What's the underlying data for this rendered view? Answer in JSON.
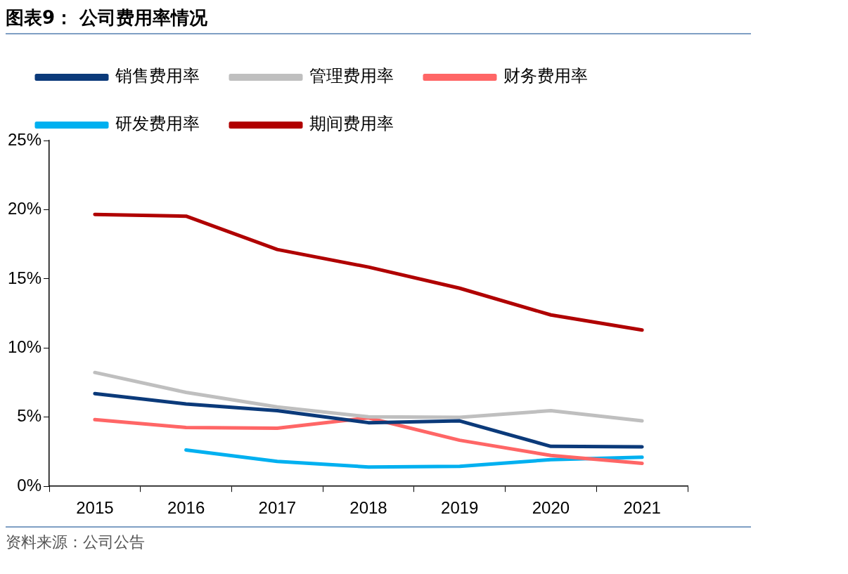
{
  "chart_data": {
    "type": "line",
    "title": "图表9：  公司费用率情况",
    "categories": [
      "2015",
      "2016",
      "2017",
      "2018",
      "2019",
      "2020",
      "2021"
    ],
    "series": [
      {
        "name": "销售费用率",
        "color": "#0b3a7a",
        "values": [
          6.7,
          5.95,
          5.47,
          4.6,
          4.73,
          2.89,
          2.85
        ]
      },
      {
        "name": "管理费用率",
        "color": "#bfbfbf",
        "values": [
          8.23,
          6.79,
          5.74,
          5.03,
          4.99,
          5.47,
          4.73
        ]
      },
      {
        "name": "财务费用率",
        "color": "#ff6666",
        "values": [
          4.82,
          4.25,
          4.2,
          4.95,
          3.33,
          2.23,
          1.66
        ]
      },
      {
        "name": "研发费用率",
        "color": "#00b0f0",
        "values": [
          null,
          2.63,
          1.8,
          1.4,
          1.44,
          1.93,
          2.1
        ]
      },
      {
        "name": "期间费用率",
        "color": "#b00000",
        "values": [
          19.66,
          19.53,
          17.12,
          15.85,
          14.32,
          12.39,
          11.3
        ]
      }
    ],
    "ylim": [
      0,
      25
    ],
    "yticks": [
      {
        "value": 0,
        "label": "0%"
      },
      {
        "value": 5,
        "label": "5%"
      },
      {
        "value": 10,
        "label": "10%"
      },
      {
        "value": 15,
        "label": "15%"
      },
      {
        "value": 20,
        "label": "20%"
      },
      {
        "value": 25,
        "label": "25%"
      }
    ],
    "grid": false,
    "legend": "top",
    "marker": "none",
    "line_style": "solid",
    "annotations": [
      "资料来源：公司公告"
    ]
  }
}
